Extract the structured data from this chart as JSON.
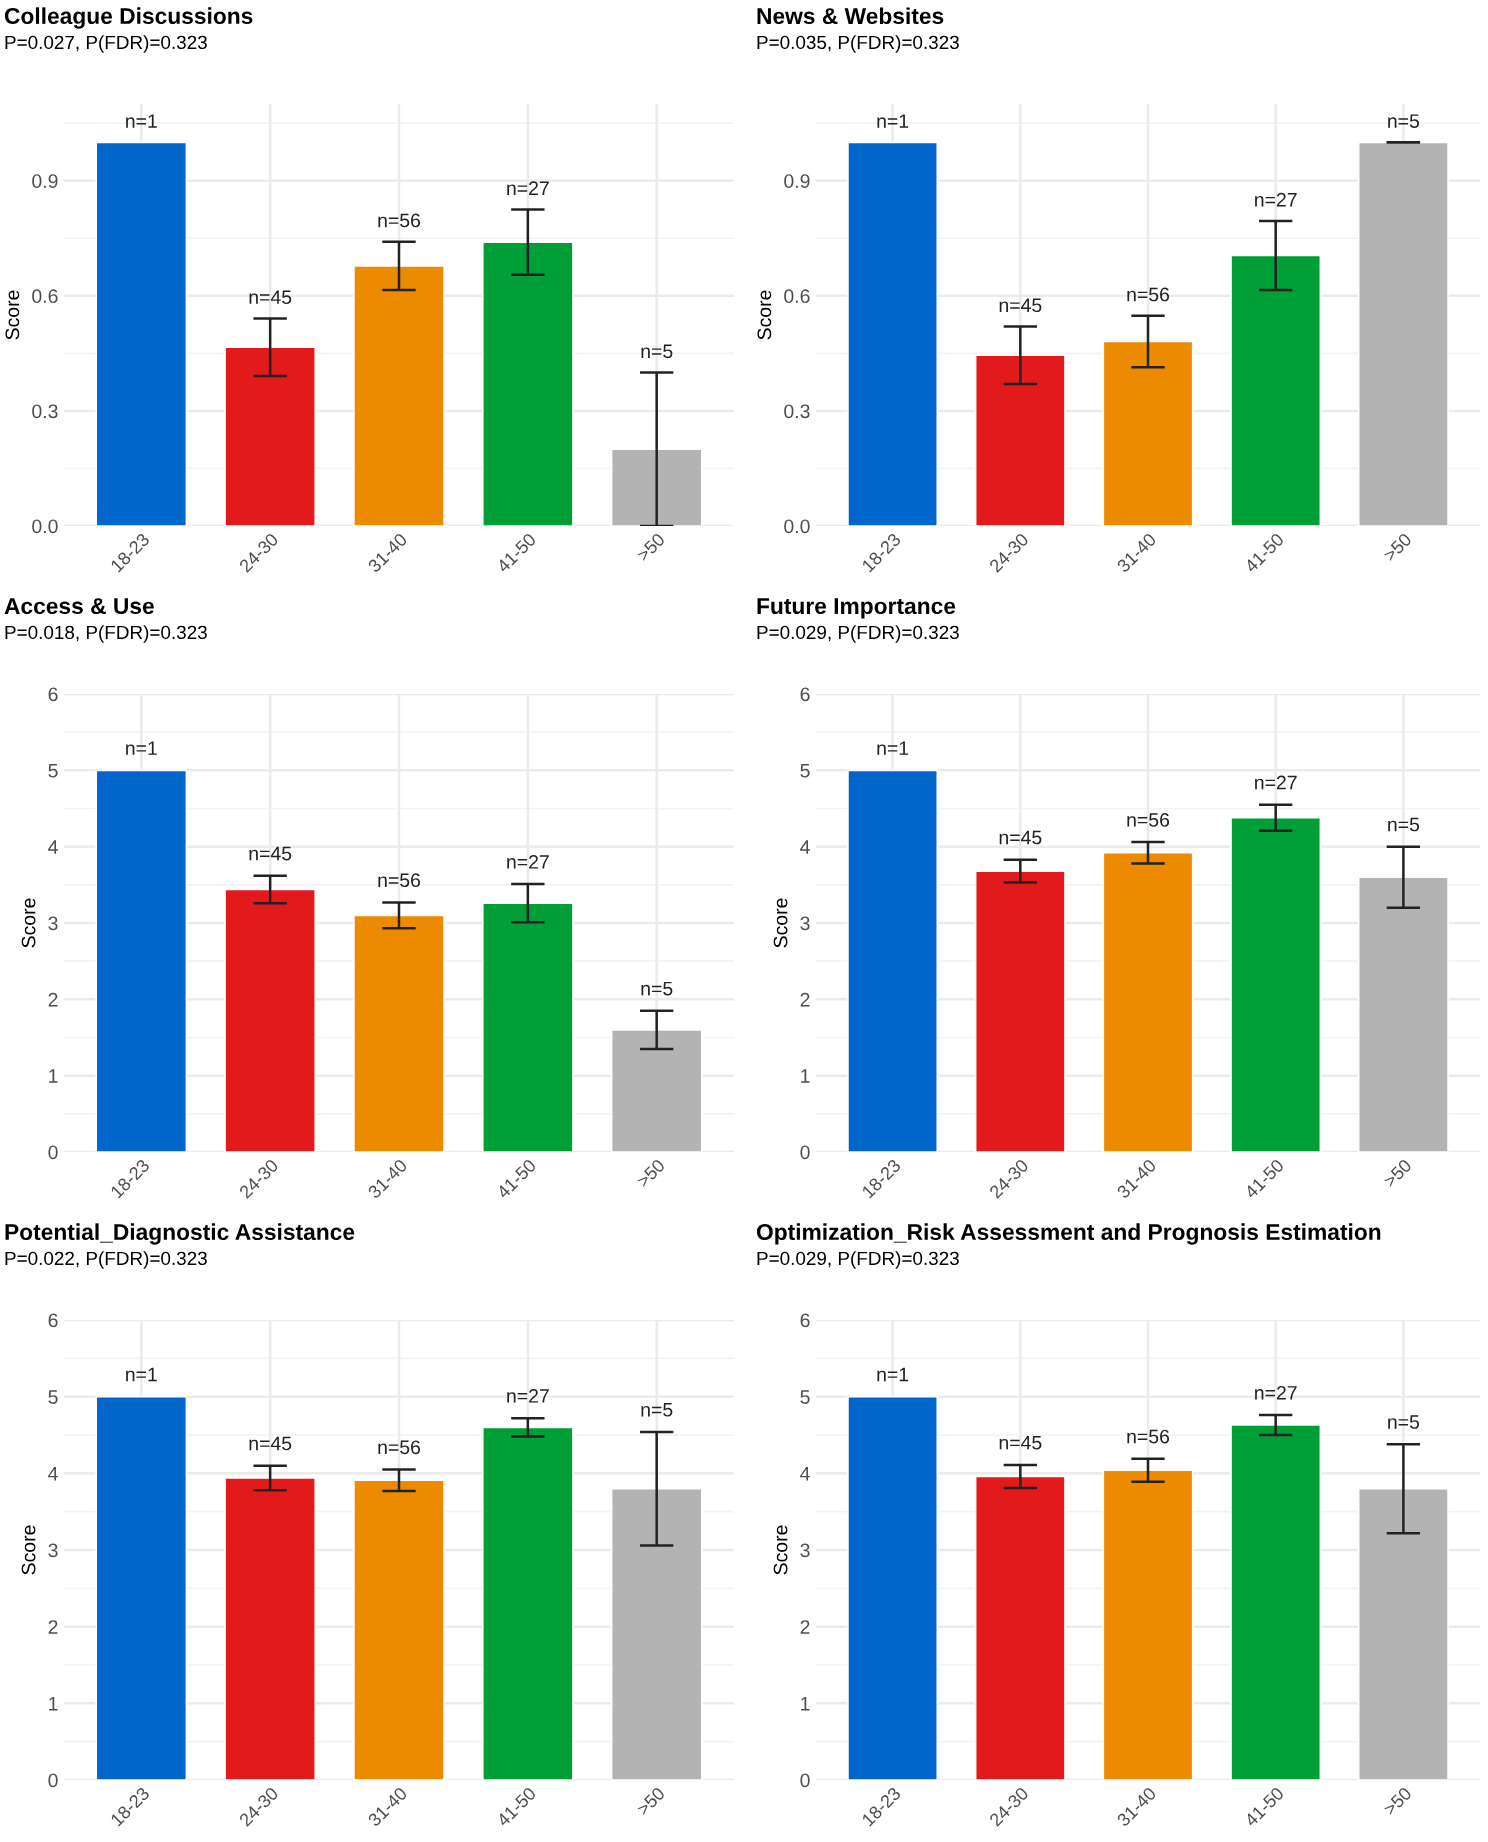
{
  "chart_data": [
    {
      "type": "bar",
      "title": "Colleague Discussions",
      "subtitle": "P=0.027, P(FDR)=0.323",
      "ylabel": "Score",
      "categories": [
        "18-23",
        "24-30",
        "31-40",
        "41-50",
        ">50"
      ],
      "colors": [
        "#0066cc",
        "#e31a1c",
        "#ec8b00",
        "#009e36",
        "#b3b3b3"
      ],
      "values": [
        1.0,
        0.466,
        0.678,
        0.74,
        0.2
      ],
      "errors": [
        null,
        0.075,
        0.063,
        0.085,
        0.2
      ],
      "ylim": [
        0,
        1.1
      ],
      "yticks": [
        {
          "value": 0,
          "label": "0.0"
        },
        0.3,
        0.6,
        0.9
      ],
      "grid": true,
      "annotations": [
        "n=1",
        "n=45",
        "n=56",
        "n=27",
        "n=5"
      ]
    },
    {
      "type": "bar",
      "title": "News & Websites",
      "subtitle": "P=0.035, P(FDR)=0.323",
      "ylabel": "Score",
      "categories": [
        "18-23",
        "24-30",
        "31-40",
        "41-50",
        ">50"
      ],
      "colors": [
        "#0066cc",
        "#e31a1c",
        "#ec8b00",
        "#009e36",
        "#b3b3b3"
      ],
      "values": [
        1.0,
        0.445,
        0.481,
        0.705,
        1.0
      ],
      "errors": [
        null,
        0.075,
        0.067,
        0.09,
        0
      ],
      "ylim": [
        0,
        1.1
      ],
      "yticks": [
        {
          "value": 0,
          "label": "0.0"
        },
        0.3,
        0.6,
        0.9
      ],
      "grid": true,
      "annotations": [
        "n=1",
        "n=45",
        "n=56",
        "n=27",
        "n=5"
      ]
    },
    {
      "type": "bar",
      "title": "Access & Use",
      "subtitle": "P=0.018, P(FDR)=0.323",
      "ylabel": "Score",
      "categories": [
        "18-23",
        "24-30",
        "31-40",
        "41-50",
        ">50"
      ],
      "colors": [
        "#0066cc",
        "#e31a1c",
        "#ec8b00",
        "#009e36",
        "#b3b3b3"
      ],
      "values": [
        5,
        3.44,
        3.1,
        3.26,
        1.6
      ],
      "errors": [
        null,
        0.18,
        0.17,
        0.25,
        0.25
      ],
      "ylim": [
        0,
        6
      ],
      "yticks": [
        0,
        1,
        2,
        3,
        4,
        5,
        6
      ],
      "grid": true,
      "annotations": [
        "n=1",
        "n=45",
        "n=56",
        "n=27",
        "n=5"
      ]
    },
    {
      "type": "bar",
      "title": "Future Importance",
      "subtitle": "P=0.029, P(FDR)=0.323",
      "ylabel": "Score",
      "categories": [
        "18-23",
        "24-30",
        "31-40",
        "41-50",
        ">50"
      ],
      "colors": [
        "#0066cc",
        "#e31a1c",
        "#ec8b00",
        "#009e36",
        "#b3b3b3"
      ],
      "values": [
        5,
        3.68,
        3.92,
        4.38,
        3.6
      ],
      "errors": [
        null,
        0.15,
        0.14,
        0.17,
        0.4
      ],
      "ylim": [
        0,
        6
      ],
      "yticks": [
        0,
        1,
        2,
        3,
        4,
        5,
        6
      ],
      "grid": true,
      "annotations": [
        "n=1",
        "n=45",
        "n=56",
        "n=27",
        "n=5"
      ]
    },
    {
      "type": "bar",
      "title": "Potential_Diagnostic Assistance",
      "subtitle": "P=0.022, P(FDR)=0.323",
      "ylabel": "Score",
      "categories": [
        "18-23",
        "24-30",
        "31-40",
        "41-50",
        ">50"
      ],
      "colors": [
        "#0066cc",
        "#e31a1c",
        "#ec8b00",
        "#009e36",
        "#b3b3b3"
      ],
      "values": [
        5,
        3.94,
        3.91,
        4.6,
        3.8
      ],
      "errors": [
        null,
        0.16,
        0.14,
        0.12,
        0.74
      ],
      "ylim": [
        0,
        6
      ],
      "yticks": [
        0,
        1,
        2,
        3,
        4,
        5,
        6
      ],
      "grid": true,
      "annotations": [
        "n=1",
        "n=45",
        "n=56",
        "n=27",
        "n=5"
      ]
    },
    {
      "type": "bar",
      "title": "Optimization_Risk Assessment and Prognosis Estimation",
      "subtitle": "P=0.029, P(FDR)=0.323",
      "ylabel": "Score",
      "categories": [
        "18-23",
        "24-30",
        "31-40",
        "41-50",
        ">50"
      ],
      "colors": [
        "#0066cc",
        "#e31a1c",
        "#ec8b00",
        "#009e36",
        "#b3b3b3"
      ],
      "values": [
        5,
        3.96,
        4.04,
        4.63,
        3.8
      ],
      "errors": [
        null,
        0.15,
        0.15,
        0.13,
        0.58
      ],
      "ylim": [
        0,
        6
      ],
      "yticks": [
        0,
        1,
        2,
        3,
        4,
        5,
        6
      ],
      "grid": true,
      "annotations": [
        "n=1",
        "n=45",
        "n=56",
        "n=27",
        "n=5"
      ]
    }
  ]
}
